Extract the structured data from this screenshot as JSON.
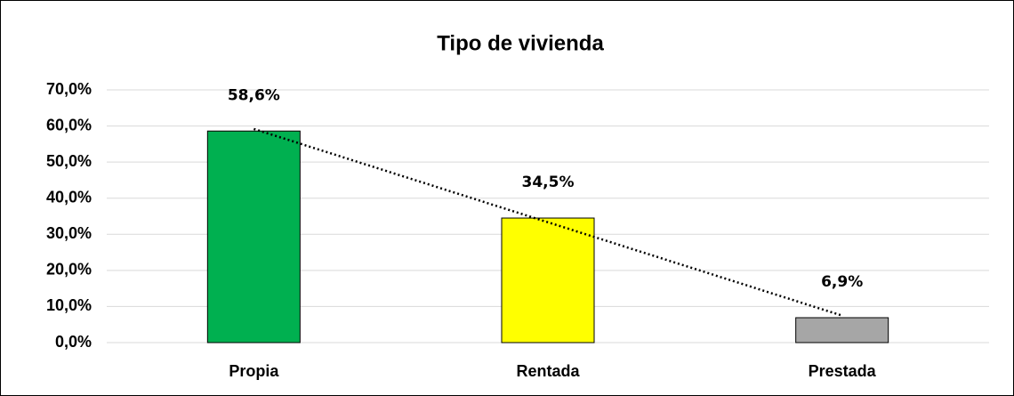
{
  "chart_data": {
    "type": "bar",
    "title": "Tipo de vivienda",
    "categories": [
      "Propia",
      "Rentada",
      "Prestada"
    ],
    "values": [
      58.6,
      34.5,
      6.9
    ],
    "value_labels": [
      "58,6%",
      "34,5%",
      "6,9%"
    ],
    "colors": [
      "#00b050",
      "#ffff00",
      "#a6a6a6"
    ],
    "ylim": [
      0,
      70
    ],
    "yticks": [
      {
        "value": 0,
        "label": "0,0%"
      },
      {
        "value": 10,
        "label": "10,0%"
      },
      {
        "value": 20,
        "label": "20,0%"
      },
      {
        "value": 30,
        "label": "30,0%"
      },
      {
        "value": 40,
        "label": "40,0%"
      },
      {
        "value": 50,
        "label": "50,0%"
      },
      {
        "value": 60,
        "label": "60,0%"
      },
      {
        "value": 70,
        "label": "70,0%"
      }
    ],
    "grid": true,
    "trendline": "linear"
  }
}
